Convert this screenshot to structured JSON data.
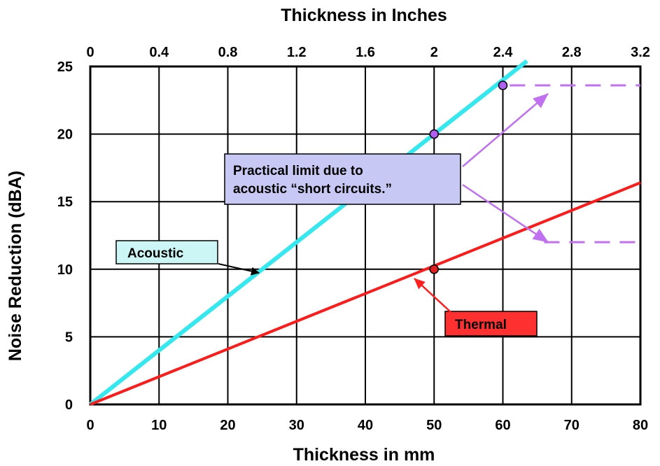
{
  "chart_data": {
    "type": "line",
    "title": "",
    "xlabel": "Thickness in mm",
    "x2label": "Thickness in Inches",
    "ylabel": "Noise Reduction (dBA)",
    "xlim": [
      0,
      80
    ],
    "ylim": [
      0,
      25
    ],
    "x2lim": [
      0,
      3.2
    ],
    "xticks": [
      0,
      10,
      20,
      30,
      40,
      50,
      60,
      70,
      80
    ],
    "xtick_labels": [
      "0",
      "10",
      "20",
      "30",
      "40",
      "50",
      "60",
      "70",
      "80"
    ],
    "x2ticks": [
      0,
      0.4,
      0.8,
      1.2,
      1.6,
      2.0,
      2.4,
      2.8,
      3.2
    ],
    "x2tick_labels": [
      "0",
      "0.4",
      "0.8",
      "1.2",
      "1.6",
      "2",
      "2.4",
      "2.8",
      "3.2"
    ],
    "yticks": [
      0,
      5,
      10,
      15,
      20,
      25
    ],
    "ytick_labels": [
      "0",
      "5",
      "10",
      "15",
      "20",
      "25"
    ],
    "grid": true,
    "series": [
      {
        "name": "Acoustic",
        "color": "#33e8ee",
        "x": [
          0,
          63.5
        ],
        "y": [
          0,
          25.4
        ]
      },
      {
        "name": "Thermal",
        "color": "#ff1a1a",
        "x": [
          0,
          80
        ],
        "y": [
          0,
          16.4
        ]
      }
    ],
    "markers": [
      {
        "x": 50,
        "y": 20,
        "color": "#b060f0"
      },
      {
        "x": 60,
        "y": 23.6,
        "color": "#b060f0"
      },
      {
        "x": 50,
        "y": 10,
        "color": "#e02020"
      }
    ],
    "limit_lines": [
      {
        "y": 23.6,
        "x_from": 61,
        "x_to": 80,
        "color": "#c070f0"
      },
      {
        "y": 12,
        "x_from": 66,
        "x_to": 80,
        "color": "#c070f0"
      }
    ],
    "annotations": {
      "practical_limit": {
        "lines": [
          "Practical limit due to",
          "acoustic “short circuits.”"
        ],
        "fill": "#c8c8f4"
      },
      "acoustic_label": {
        "text": "Acoustic",
        "fill": "#ccf6f6"
      },
      "thermal_label": {
        "text": "Thermal",
        "fill": "#ff3030"
      }
    }
  }
}
